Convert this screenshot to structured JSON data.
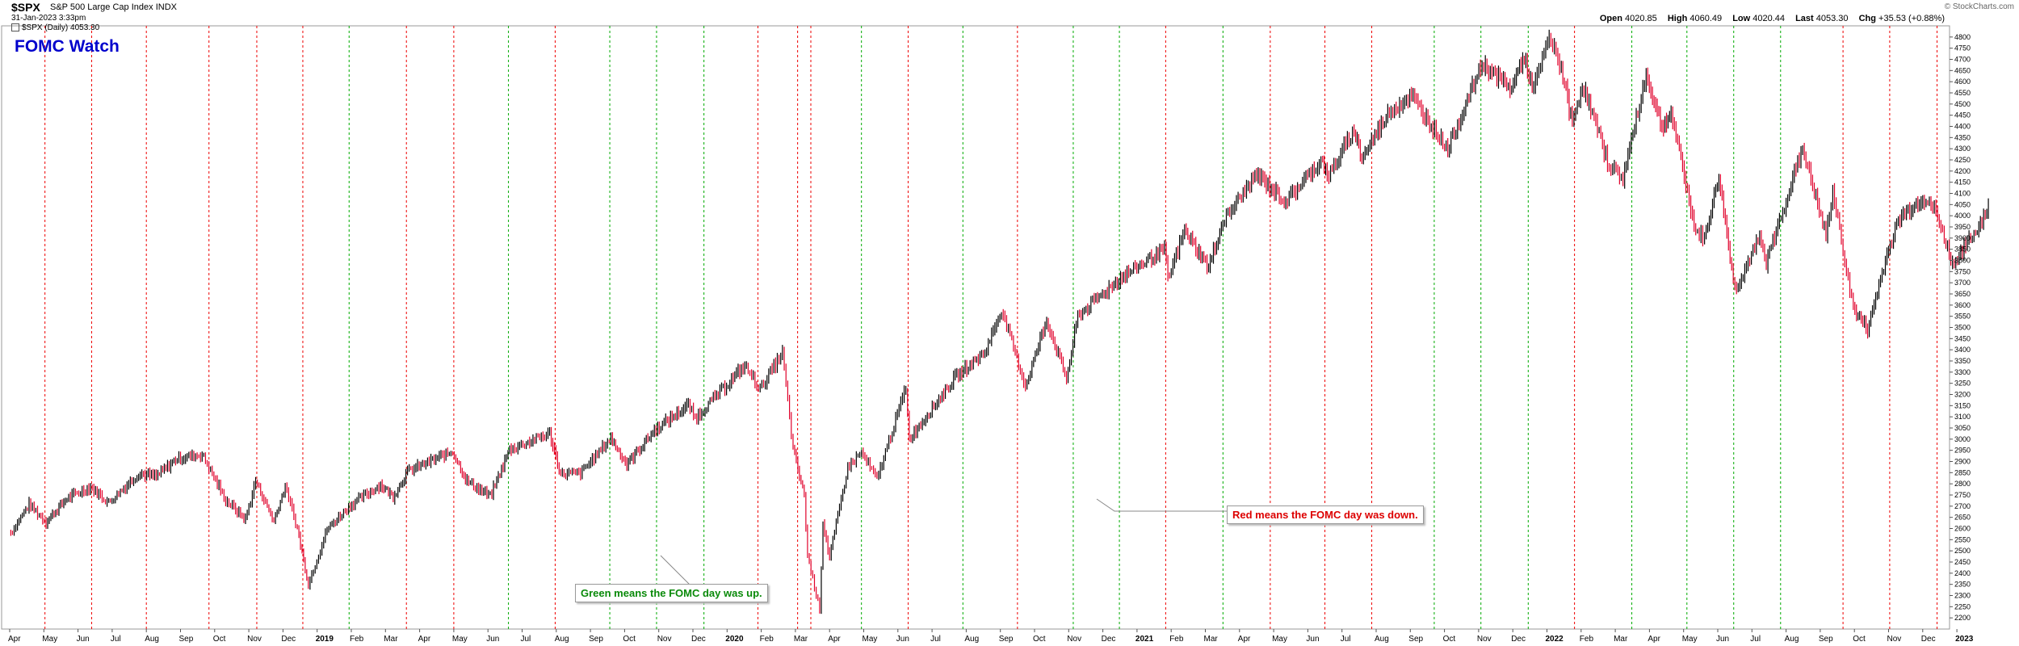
{
  "header": {
    "ticker": "$SPX",
    "name": "S&P 500 Large Cap Index",
    "exchange": "INDX",
    "date": "31-Jan-2023 3:33pm",
    "legend": "$SPX (Daily) 4053.30",
    "watermark": "© StockCharts.com",
    "watch_title": "FOMC Watch",
    "open_label": "Open",
    "open": "4020.85",
    "high_label": "High",
    "high": "4060.49",
    "low_label": "Low",
    "low": "4020.44",
    "last_label": "Last",
    "last": "4053.30",
    "chg_label": "Chg",
    "chg": "+35.53 (+0.88%)"
  },
  "annotations": {
    "green_note": "Green means the FOMC day was up.",
    "red_note": "Red means the FOMC day was down."
  },
  "colors": {
    "up": "#000000",
    "down": "#e0002a",
    "fomc_up": "#00aa00",
    "fomc_down": "#ee0000",
    "watch_title": "#0000cc"
  },
  "chart_data": {
    "type": "line",
    "title": "$SPX S&P 500 Large Cap Index",
    "x_range": [
      "2018-04",
      "2023-01-31"
    ],
    "ylim": [
      2150,
      4850
    ],
    "y_ticks": [
      2200,
      2250,
      2300,
      2350,
      2400,
      2450,
      2500,
      2550,
      2600,
      2650,
      2700,
      2750,
      2800,
      2850,
      2900,
      2950,
      3000,
      3050,
      3100,
      3150,
      3200,
      3250,
      3300,
      3350,
      3400,
      3450,
      3500,
      3550,
      3600,
      3650,
      3700,
      3750,
      3800,
      3850,
      3900,
      3950,
      4000,
      4050,
      4100,
      4150,
      4200,
      4250,
      4300,
      4350,
      4400,
      4450,
      4500,
      4550,
      4600,
      4650,
      4700,
      4750,
      4800
    ],
    "x_ticks": [
      {
        "m": 0,
        "label": "Apr",
        "bold": false
      },
      {
        "m": 1,
        "label": "May",
        "bold": false
      },
      {
        "m": 2,
        "label": "Jun",
        "bold": false
      },
      {
        "m": 3,
        "label": "Jul",
        "bold": false
      },
      {
        "m": 4,
        "label": "Aug",
        "bold": false
      },
      {
        "m": 5,
        "label": "Sep",
        "bold": false
      },
      {
        "m": 6,
        "label": "Oct",
        "bold": false
      },
      {
        "m": 7,
        "label": "Nov",
        "bold": false
      },
      {
        "m": 8,
        "label": "Dec",
        "bold": false
      },
      {
        "m": 9,
        "label": "2019",
        "bold": true
      },
      {
        "m": 10,
        "label": "Feb",
        "bold": false
      },
      {
        "m": 11,
        "label": "Mar",
        "bold": false
      },
      {
        "m": 12,
        "label": "Apr",
        "bold": false
      },
      {
        "m": 13,
        "label": "May",
        "bold": false
      },
      {
        "m": 14,
        "label": "Jun",
        "bold": false
      },
      {
        "m": 15,
        "label": "Jul",
        "bold": false
      },
      {
        "m": 16,
        "label": "Aug",
        "bold": false
      },
      {
        "m": 17,
        "label": "Sep",
        "bold": false
      },
      {
        "m": 18,
        "label": "Oct",
        "bold": false
      },
      {
        "m": 19,
        "label": "Nov",
        "bold": false
      },
      {
        "m": 20,
        "label": "Dec",
        "bold": false
      },
      {
        "m": 21,
        "label": "2020",
        "bold": true
      },
      {
        "m": 22,
        "label": "Feb",
        "bold": false
      },
      {
        "m": 23,
        "label": "Mar",
        "bold": false
      },
      {
        "m": 24,
        "label": "Apr",
        "bold": false
      },
      {
        "m": 25,
        "label": "May",
        "bold": false
      },
      {
        "m": 26,
        "label": "Jun",
        "bold": false
      },
      {
        "m": 27,
        "label": "Jul",
        "bold": false
      },
      {
        "m": 28,
        "label": "Aug",
        "bold": false
      },
      {
        "m": 29,
        "label": "Sep",
        "bold": false
      },
      {
        "m": 30,
        "label": "Oct",
        "bold": false
      },
      {
        "m": 31,
        "label": "Nov",
        "bold": false
      },
      {
        "m": 32,
        "label": "Dec",
        "bold": false
      },
      {
        "m": 33,
        "label": "2021",
        "bold": true
      },
      {
        "m": 34,
        "label": "Feb",
        "bold": false
      },
      {
        "m": 35,
        "label": "Mar",
        "bold": false
      },
      {
        "m": 36,
        "label": "Apr",
        "bold": false
      },
      {
        "m": 37,
        "label": "May",
        "bold": false
      },
      {
        "m": 38,
        "label": "Jun",
        "bold": false
      },
      {
        "m": 39,
        "label": "Jul",
        "bold": false
      },
      {
        "m": 40,
        "label": "Aug",
        "bold": false
      },
      {
        "m": 41,
        "label": "Sep",
        "bold": false
      },
      {
        "m": 42,
        "label": "Oct",
        "bold": false
      },
      {
        "m": 43,
        "label": "Nov",
        "bold": false
      },
      {
        "m": 44,
        "label": "Dec",
        "bold": false
      },
      {
        "m": 45,
        "label": "2022",
        "bold": true
      },
      {
        "m": 46,
        "label": "Feb",
        "bold": false
      },
      {
        "m": 47,
        "label": "Mar",
        "bold": false
      },
      {
        "m": 48,
        "label": "Apr",
        "bold": false
      },
      {
        "m": 49,
        "label": "May",
        "bold": false
      },
      {
        "m": 50,
        "label": "Jun",
        "bold": false
      },
      {
        "m": 51,
        "label": "Jul",
        "bold": false
      },
      {
        "m": 52,
        "label": "Aug",
        "bold": false
      },
      {
        "m": 53,
        "label": "Sep",
        "bold": false
      },
      {
        "m": 54,
        "label": "Oct",
        "bold": false
      },
      {
        "m": 55,
        "label": "Nov",
        "bold": false
      },
      {
        "m": 56,
        "label": "Dec",
        "bold": false
      },
      {
        "m": 57,
        "label": "2023",
        "bold": true
      }
    ],
    "fomc_days": [
      {
        "date": "2018-05-02",
        "up": false
      },
      {
        "date": "2018-06-13",
        "up": false
      },
      {
        "date": "2018-08-01",
        "up": false
      },
      {
        "date": "2018-09-26",
        "up": false
      },
      {
        "date": "2018-11-08",
        "up": false
      },
      {
        "date": "2018-12-19",
        "up": false
      },
      {
        "date": "2019-01-30",
        "up": true
      },
      {
        "date": "2019-03-20",
        "up": false
      },
      {
        "date": "2019-05-01",
        "up": false
      },
      {
        "date": "2019-06-19",
        "up": true
      },
      {
        "date": "2019-07-31",
        "up": false
      },
      {
        "date": "2019-09-18",
        "up": true
      },
      {
        "date": "2019-10-30",
        "up": true
      },
      {
        "date": "2019-12-11",
        "up": true
      },
      {
        "date": "2020-01-29",
        "up": false
      },
      {
        "date": "2020-03-03",
        "up": false
      },
      {
        "date": "2020-03-15",
        "up": false
      },
      {
        "date": "2020-04-29",
        "up": true
      },
      {
        "date": "2020-06-10",
        "up": false
      },
      {
        "date": "2020-07-29",
        "up": true
      },
      {
        "date": "2020-09-16",
        "up": false
      },
      {
        "date": "2020-11-05",
        "up": true
      },
      {
        "date": "2020-12-16",
        "up": true
      },
      {
        "date": "2021-01-27",
        "up": false
      },
      {
        "date": "2021-03-17",
        "up": true
      },
      {
        "date": "2021-04-28",
        "up": false
      },
      {
        "date": "2021-06-16",
        "up": false
      },
      {
        "date": "2021-07-28",
        "up": false
      },
      {
        "date": "2021-09-22",
        "up": true
      },
      {
        "date": "2021-11-03",
        "up": true
      },
      {
        "date": "2021-12-15",
        "up": true
      },
      {
        "date": "2022-01-26",
        "up": false
      },
      {
        "date": "2022-03-16",
        "up": true
      },
      {
        "date": "2022-05-04",
        "up": true
      },
      {
        "date": "2022-06-15",
        "up": true
      },
      {
        "date": "2022-07-27",
        "up": true
      },
      {
        "date": "2022-09-21",
        "up": false
      },
      {
        "date": "2022-11-02",
        "up": false
      },
      {
        "date": "2022-12-14",
        "up": false
      }
    ],
    "price_path": [
      [
        "2018-04-02",
        2581
      ],
      [
        "2018-04-18",
        2708
      ],
      [
        "2018-05-03",
        2630
      ],
      [
        "2018-05-22",
        2735
      ],
      [
        "2018-06-12",
        2786
      ],
      [
        "2018-06-28",
        2716
      ],
      [
        "2018-07-25",
        2846
      ],
      [
        "2018-08-10",
        2833
      ],
      [
        "2018-08-29",
        2914
      ],
      [
        "2018-09-20",
        2931
      ],
      [
        "2018-10-11",
        2728
      ],
      [
        "2018-10-29",
        2641
      ],
      [
        "2018-11-07",
        2813
      ],
      [
        "2018-11-23",
        2633
      ],
      [
        "2018-12-03",
        2790
      ],
      [
        "2018-12-14",
        2600
      ],
      [
        "2018-12-24",
        2351
      ],
      [
        "2019-01-10",
        2596
      ],
      [
        "2019-01-31",
        2704
      ],
      [
        "2019-02-25",
        2796
      ],
      [
        "2019-03-08",
        2743
      ],
      [
        "2019-03-21",
        2855
      ],
      [
        "2019-04-30",
        2945
      ],
      [
        "2019-05-13",
        2812
      ],
      [
        "2019-06-03",
        2744
      ],
      [
        "2019-06-20",
        2954
      ],
      [
        "2019-07-26",
        3025
      ],
      [
        "2019-08-05",
        2844
      ],
      [
        "2019-08-23",
        2847
      ],
      [
        "2019-09-19",
        3006
      ],
      [
        "2019-10-03",
        2887
      ],
      [
        "2019-10-28",
        3039
      ],
      [
        "2019-11-27",
        3153
      ],
      [
        "2019-12-03",
        3093
      ],
      [
        "2020-01-17",
        3329
      ],
      [
        "2020-01-31",
        3225
      ],
      [
        "2020-02-19",
        3386
      ],
      [
        "2020-02-28",
        2954
      ],
      [
        "2020-03-09",
        2747
      ],
      [
        "2020-03-12",
        2480
      ],
      [
        "2020-03-23",
        2237
      ],
      [
        "2020-03-26",
        2630
      ],
      [
        "2020-04-01",
        2470
      ],
      [
        "2020-04-17",
        2875
      ],
      [
        "2020-04-29",
        2939
      ],
      [
        "2020-05-13",
        2820
      ],
      [
        "2020-06-08",
        3232
      ],
      [
        "2020-06-11",
        3002
      ],
      [
        "2020-07-22",
        3276
      ],
      [
        "2020-08-18",
        3389
      ],
      [
        "2020-09-02",
        3580
      ],
      [
        "2020-09-23",
        3237
      ],
      [
        "2020-10-12",
        3534
      ],
      [
        "2020-10-30",
        3270
      ],
      [
        "2020-11-09",
        3551
      ],
      [
        "2020-12-17",
        3722
      ],
      [
        "2021-01-26",
        3850
      ],
      [
        "2021-01-29",
        3714
      ],
      [
        "2021-02-12",
        3935
      ],
      [
        "2021-03-04",
        3768
      ],
      [
        "2021-03-17",
        3974
      ],
      [
        "2021-04-16",
        4185
      ],
      [
        "2021-05-12",
        4063
      ],
      [
        "2021-06-14",
        4255
      ],
      [
        "2021-06-18",
        4166
      ],
      [
        "2021-07-12",
        4384
      ],
      [
        "2021-07-19",
        4258
      ],
      [
        "2021-08-13",
        4468
      ],
      [
        "2021-09-02",
        4536
      ],
      [
        "2021-10-04",
        4300
      ],
      [
        "2021-11-04",
        4680
      ],
      [
        "2021-11-30",
        4567
      ],
      [
        "2021-12-10",
        4712
      ],
      [
        "2021-12-20",
        4568
      ],
      [
        "2022-01-03",
        4797
      ],
      [
        "2022-01-14",
        4663
      ],
      [
        "2022-01-24",
        4410
      ],
      [
        "2022-02-02",
        4589
      ],
      [
        "2022-02-24",
        4225
      ],
      [
        "2022-03-08",
        4170
      ],
      [
        "2022-03-29",
        4631
      ],
      [
        "2022-04-12",
        4397
      ],
      [
        "2022-04-20",
        4460
      ],
      [
        "2022-05-12",
        3930
      ],
      [
        "2022-05-20",
        3900
      ],
      [
        "2022-06-02",
        4177
      ],
      [
        "2022-06-16",
        3667
      ],
      [
        "2022-07-08",
        3899
      ],
      [
        "2022-07-14",
        3790
      ],
      [
        "2022-08-16",
        4305
      ],
      [
        "2022-09-06",
        3908
      ],
      [
        "2022-09-12",
        4110
      ],
      [
        "2022-09-30",
        3585
      ],
      [
        "2022-10-13",
        3491
      ],
      [
        "2022-11-01",
        3856
      ],
      [
        "2022-11-11",
        3992
      ],
      [
        "2022-12-01",
        4080
      ],
      [
        "2022-12-13",
        4019
      ],
      [
        "2022-12-28",
        3783
      ],
      [
        "2023-01-18",
        3928
      ],
      [
        "2023-01-31",
        4053
      ]
    ]
  }
}
